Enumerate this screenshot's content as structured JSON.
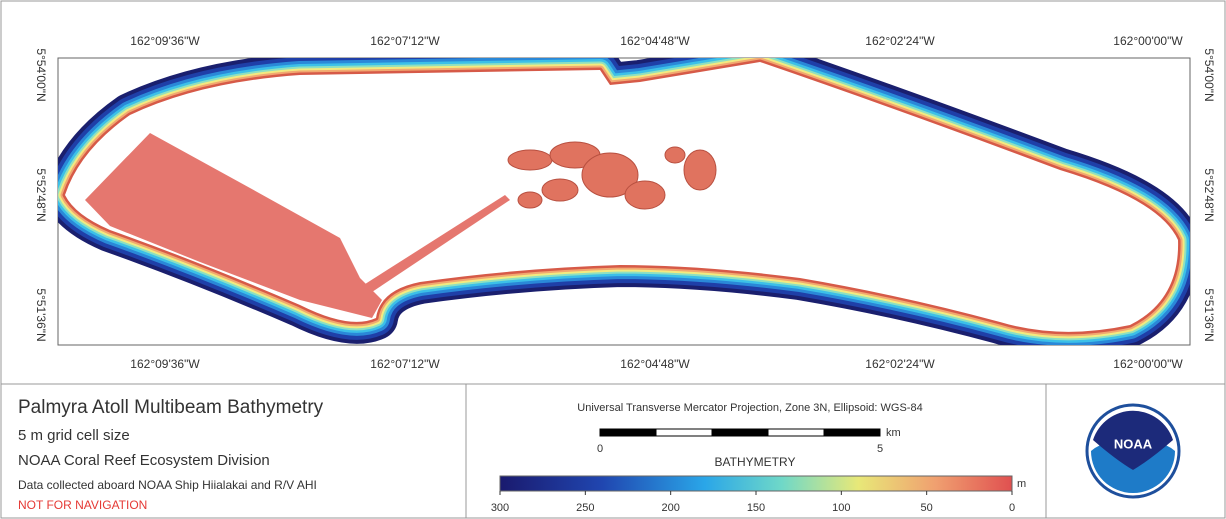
{
  "map": {
    "top_lon_labels": [
      "162°09'36\"W",
      "162°07'12\"W",
      "162°04'48\"W",
      "162°02'24\"W",
      "162°00'00\"W"
    ],
    "bottom_lon_labels": [
      "162°09'36\"W",
      "162°07'12\"W",
      "162°04'48\"W",
      "162°02'24\"W",
      "162°00'00\"W"
    ],
    "left_lat_labels": [
      "5°54'00\"N",
      "5°52'48\"N",
      "5°51'36\"N"
    ],
    "right_lat_labels": [
      "5°54'00\"N",
      "5°52'48\"N",
      "5°51'36\"N"
    ]
  },
  "legend": {
    "title": "Palmyra Atoll Multibeam Bathymetry",
    "lines": [
      "5 m grid cell size",
      "NOAA Coral Reef Ecosystem Division",
      "Data collected aboard NOAA Ship Hiialakai and R/V AHI"
    ],
    "warning": "NOT FOR NAVIGATION",
    "projection": "Universal Transverse Mercator Projection, Zone 3N, Ellipsoid: WGS-84",
    "scale_bar": {
      "ticks": [
        "0",
        "5"
      ],
      "unit": "km"
    },
    "colorbar": {
      "title": "BATHYMETRY",
      "unit": "m",
      "ticks": [
        "300",
        "250",
        "200",
        "150",
        "100",
        "50",
        "0"
      ]
    },
    "logo": "NOAA"
  }
}
